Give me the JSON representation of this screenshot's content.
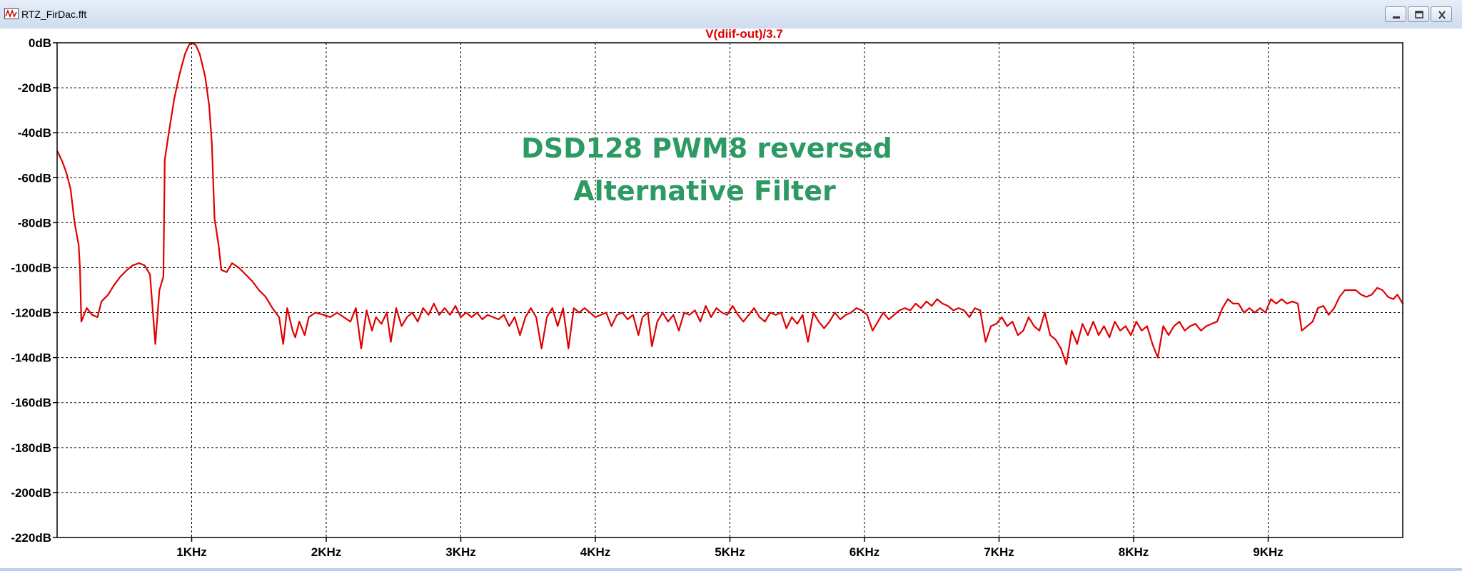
{
  "window": {
    "title": "RTZ_FirDac.fft",
    "icons": {
      "app": "waveform-icon",
      "minimize": "minimize-icon",
      "maximize": "maximize-icon",
      "close": "close-icon"
    }
  },
  "colors": {
    "trace": "#e00000",
    "annotation": "#2e9a63",
    "grid": "#000000",
    "background": "#ffffff"
  },
  "chart_data": {
    "type": "line",
    "title": "V(diif-out)/3.7",
    "annotation_lines": [
      "DSD128 PWM8 reversed",
      "Alternative Filter"
    ],
    "xlabel": "",
    "ylabel": "",
    "xlim": [
      0,
      10000
    ],
    "ylim": [
      -220,
      0
    ],
    "x_ticks": [
      1000,
      2000,
      3000,
      4000,
      5000,
      6000,
      7000,
      8000,
      9000
    ],
    "x_tick_labels": [
      "1KHz",
      "2KHz",
      "3KHz",
      "4KHz",
      "5KHz",
      "6KHz",
      "7KHz",
      "8KHz",
      "9KHz"
    ],
    "y_ticks": [
      0,
      -20,
      -40,
      -60,
      -80,
      -100,
      -120,
      -140,
      -160,
      -180,
      -200,
      -220
    ],
    "y_tick_labels": [
      "0dB",
      "-20dB",
      "-40dB",
      "-60dB",
      "-80dB",
      "-100dB",
      "-120dB",
      "-140dB",
      "-160dB",
      "-180dB",
      "-200dB",
      "-220dB"
    ],
    "grid": true,
    "series": [
      {
        "name": "V(diif-out)/3.7",
        "points": [
          [
            0,
            -48
          ],
          [
            40,
            -53
          ],
          [
            70,
            -58
          ],
          [
            100,
            -65
          ],
          [
            130,
            -80
          ],
          [
            160,
            -90
          ],
          [
            170,
            -100
          ],
          [
            180,
            -124
          ],
          [
            220,
            -118
          ],
          [
            260,
            -121
          ],
          [
            300,
            -122
          ],
          [
            330,
            -115
          ],
          [
            380,
            -112
          ],
          [
            420,
            -108
          ],
          [
            470,
            -104
          ],
          [
            520,
            -101
          ],
          [
            560,
            -99
          ],
          [
            610,
            -98
          ],
          [
            650,
            -99
          ],
          [
            690,
            -103
          ],
          [
            730,
            -134
          ],
          [
            760,
            -110
          ],
          [
            790,
            -104
          ],
          [
            800,
            -52
          ],
          [
            830,
            -40
          ],
          [
            870,
            -25
          ],
          [
            910,
            -14
          ],
          [
            950,
            -5
          ],
          [
            980,
            -1
          ],
          [
            1000,
            0
          ],
          [
            1030,
            -1
          ],
          [
            1060,
            -5
          ],
          [
            1100,
            -15
          ],
          [
            1130,
            -28
          ],
          [
            1150,
            -45
          ],
          [
            1170,
            -78
          ],
          [
            1200,
            -90
          ],
          [
            1220,
            -101
          ],
          [
            1260,
            -102
          ],
          [
            1300,
            -98
          ],
          [
            1350,
            -100
          ],
          [
            1400,
            -103
          ],
          [
            1450,
            -106
          ],
          [
            1500,
            -110
          ],
          [
            1550,
            -113
          ],
          [
            1600,
            -118
          ],
          [
            1650,
            -122
          ],
          [
            1680,
            -134
          ],
          [
            1710,
            -118
          ],
          [
            1750,
            -128
          ],
          [
            1770,
            -131
          ],
          [
            1800,
            -124
          ],
          [
            1840,
            -130
          ],
          [
            1870,
            -122
          ],
          [
            1920,
            -120
          ],
          [
            1980,
            -121
          ],
          [
            2030,
            -122
          ],
          [
            2080,
            -120
          ],
          [
            2130,
            -122
          ],
          [
            2180,
            -124
          ],
          [
            2220,
            -118
          ],
          [
            2260,
            -136
          ],
          [
            2300,
            -119
          ],
          [
            2340,
            -128
          ],
          [
            2370,
            -122
          ],
          [
            2410,
            -125
          ],
          [
            2450,
            -120
          ],
          [
            2480,
            -133
          ],
          [
            2520,
            -118
          ],
          [
            2560,
            -126
          ],
          [
            2600,
            -122
          ],
          [
            2640,
            -120
          ],
          [
            2680,
            -124
          ],
          [
            2720,
            -118
          ],
          [
            2760,
            -121
          ],
          [
            2800,
            -116
          ],
          [
            2840,
            -121
          ],
          [
            2880,
            -118
          ],
          [
            2920,
            -121
          ],
          [
            2960,
            -117
          ],
          [
            3000,
            -122
          ],
          [
            3040,
            -120
          ],
          [
            3080,
            -122
          ],
          [
            3120,
            -120
          ],
          [
            3160,
            -123
          ],
          [
            3200,
            -121
          ],
          [
            3240,
            -122
          ],
          [
            3280,
            -123
          ],
          [
            3320,
            -121
          ],
          [
            3360,
            -126
          ],
          [
            3400,
            -122
          ],
          [
            3440,
            -130
          ],
          [
            3480,
            -122
          ],
          [
            3520,
            -118
          ],
          [
            3560,
            -122
          ],
          [
            3600,
            -136
          ],
          [
            3640,
            -122
          ],
          [
            3680,
            -118
          ],
          [
            3720,
            -126
          ],
          [
            3760,
            -118
          ],
          [
            3800,
            -136
          ],
          [
            3840,
            -118
          ],
          [
            3880,
            -120
          ],
          [
            3920,
            -118
          ],
          [
            3960,
            -120
          ],
          [
            4000,
            -122
          ],
          [
            4040,
            -121
          ],
          [
            4080,
            -120
          ],
          [
            4120,
            -126
          ],
          [
            4160,
            -121
          ],
          [
            4200,
            -120
          ],
          [
            4240,
            -123
          ],
          [
            4280,
            -121
          ],
          [
            4320,
            -130
          ],
          [
            4350,
            -122
          ],
          [
            4390,
            -120
          ],
          [
            4420,
            -135
          ],
          [
            4460,
            -124
          ],
          [
            4500,
            -120
          ],
          [
            4540,
            -124
          ],
          [
            4580,
            -121
          ],
          [
            4620,
            -128
          ],
          [
            4660,
            -120
          ],
          [
            4700,
            -121
          ],
          [
            4740,
            -119
          ],
          [
            4780,
            -124
          ],
          [
            4820,
            -117
          ],
          [
            4860,
            -122
          ],
          [
            4900,
            -118
          ],
          [
            4940,
            -120
          ],
          [
            4980,
            -121
          ],
          [
            5020,
            -117
          ],
          [
            5060,
            -121
          ],
          [
            5100,
            -124
          ],
          [
            5140,
            -121
          ],
          [
            5180,
            -118
          ],
          [
            5220,
            -122
          ],
          [
            5260,
            -124
          ],
          [
            5300,
            -120
          ],
          [
            5340,
            -121
          ],
          [
            5380,
            -120
          ],
          [
            5420,
            -127
          ],
          [
            5460,
            -122
          ],
          [
            5500,
            -125
          ],
          [
            5540,
            -121
          ],
          [
            5580,
            -133
          ],
          [
            5620,
            -120
          ],
          [
            5660,
            -124
          ],
          [
            5700,
            -127
          ],
          [
            5740,
            -124
          ],
          [
            5780,
            -120
          ],
          [
            5820,
            -123
          ],
          [
            5860,
            -121
          ],
          [
            5900,
            -120
          ],
          [
            5940,
            -118
          ],
          [
            5980,
            -119
          ],
          [
            6020,
            -121
          ],
          [
            6060,
            -128
          ],
          [
            6100,
            -124
          ],
          [
            6140,
            -120
          ],
          [
            6180,
            -123
          ],
          [
            6220,
            -121
          ],
          [
            6260,
            -119
          ],
          [
            6300,
            -118
          ],
          [
            6340,
            -119
          ],
          [
            6380,
            -116
          ],
          [
            6420,
            -118
          ],
          [
            6460,
            -115
          ],
          [
            6500,
            -117
          ],
          [
            6540,
            -114
          ],
          [
            6580,
            -116
          ],
          [
            6620,
            -117
          ],
          [
            6660,
            -119
          ],
          [
            6700,
            -118
          ],
          [
            6740,
            -119
          ],
          [
            6780,
            -122
          ],
          [
            6820,
            -118
          ],
          [
            6860,
            -119
          ],
          [
            6900,
            -133
          ],
          [
            6940,
            -126
          ],
          [
            6980,
            -125
          ],
          [
            7020,
            -122
          ],
          [
            7060,
            -126
          ],
          [
            7100,
            -124
          ],
          [
            7140,
            -130
          ],
          [
            7180,
            -128
          ],
          [
            7220,
            -122
          ],
          [
            7260,
            -126
          ],
          [
            7300,
            -128
          ],
          [
            7340,
            -120
          ],
          [
            7380,
            -130
          ],
          [
            7420,
            -132
          ],
          [
            7460,
            -136
          ],
          [
            7500,
            -143
          ],
          [
            7540,
            -128
          ],
          [
            7580,
            -134
          ],
          [
            7620,
            -125
          ],
          [
            7660,
            -130
          ],
          [
            7700,
            -124
          ],
          [
            7740,
            -130
          ],
          [
            7780,
            -126
          ],
          [
            7820,
            -131
          ],
          [
            7860,
            -124
          ],
          [
            7900,
            -128
          ],
          [
            7940,
            -126
          ],
          [
            7980,
            -130
          ],
          [
            8020,
            -124
          ],
          [
            8060,
            -128
          ],
          [
            8100,
            -126
          ],
          [
            8140,
            -134
          ],
          [
            8180,
            -140
          ],
          [
            8220,
            -126
          ],
          [
            8260,
            -130
          ],
          [
            8300,
            -126
          ],
          [
            8340,
            -124
          ],
          [
            8380,
            -128
          ],
          [
            8420,
            -126
          ],
          [
            8460,
            -125
          ],
          [
            8500,
            -128
          ],
          [
            8540,
            -126
          ],
          [
            8580,
            -125
          ],
          [
            8620,
            -124
          ],
          [
            8660,
            -118
          ],
          [
            8700,
            -114
          ],
          [
            8740,
            -116
          ],
          [
            8780,
            -116
          ],
          [
            8820,
            -120
          ],
          [
            8860,
            -118
          ],
          [
            8900,
            -120
          ],
          [
            8940,
            -118
          ],
          [
            8980,
            -120
          ],
          [
            9020,
            -114
          ],
          [
            9060,
            -116
          ],
          [
            9100,
            -114
          ],
          [
            9140,
            -116
          ],
          [
            9180,
            -115
          ],
          [
            9220,
            -116
          ],
          [
            9250,
            -128
          ],
          [
            9290,
            -126
          ],
          [
            9330,
            -124
          ],
          [
            9370,
            -118
          ],
          [
            9410,
            -117
          ],
          [
            9450,
            -121
          ],
          [
            9490,
            -118
          ],
          [
            9530,
            -113
          ],
          [
            9570,
            -110
          ],
          [
            9610,
            -110
          ],
          [
            9650,
            -110
          ],
          [
            9690,
            -112
          ],
          [
            9730,
            -113
          ],
          [
            9770,
            -112
          ],
          [
            9810,
            -109
          ],
          [
            9850,
            -110
          ],
          [
            9890,
            -113
          ],
          [
            9930,
            -114
          ],
          [
            9960,
            -112
          ],
          [
            10000,
            -116
          ]
        ]
      }
    ]
  }
}
